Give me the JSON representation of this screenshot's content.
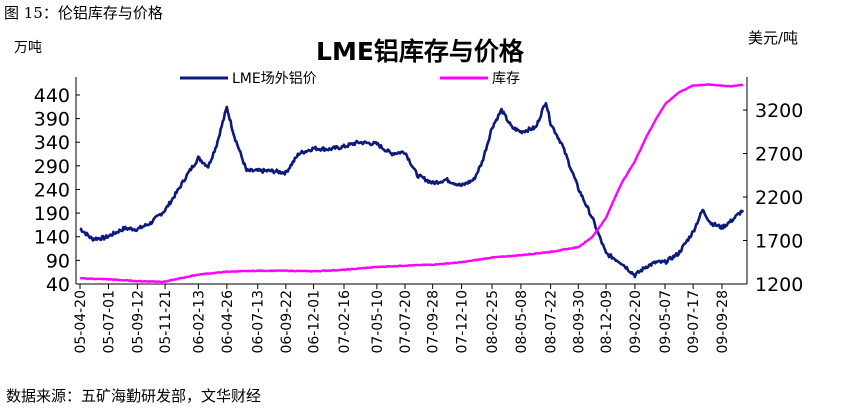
{
  "figure": {
    "caption": "图 15：伦铝库存与价格",
    "source": "数据来源：五矿海勤研发部，文华财经"
  },
  "chart_data": {
    "type": "line",
    "title": "LME铝库存与价格",
    "left_unit": "万吨",
    "right_unit": "美元/吨",
    "legend_position": "top",
    "grid": false,
    "x_tick_labels": [
      "05-04-20",
      "05-07-01",
      "05-09-12",
      "05-11-21",
      "06-02-13",
      "06-04-26",
      "06-07-13",
      "06-09-22",
      "06-12-01",
      "07-02-16",
      "07-05-10",
      "07-07-20",
      "07-09-28",
      "07-12-10",
      "08-02-25",
      "08-05-08",
      "08-07-22",
      "08-09-30",
      "08-12-09",
      "09-02-20",
      "09-05-07",
      "09-07-17",
      "09-09-28"
    ],
    "y_left": {
      "label": "万吨",
      "ticks": [
        40,
        90,
        140,
        190,
        240,
        290,
        340,
        390,
        440
      ],
      "range": [
        40,
        478
      ]
    },
    "y_right": {
      "label": "美元/吨",
      "ticks": [
        1200,
        1700,
        2200,
        2700,
        3200
      ],
      "range": [
        1200,
        3580
      ]
    },
    "series": [
      {
        "name": "LME场外铝价",
        "axis": "right",
        "color": "#0b1a7c",
        "points": [
          [
            "05-04-20",
            1840
          ],
          [
            "05-05-20",
            1720
          ],
          [
            "05-06-20",
            1730
          ],
          [
            "05-07-01",
            1750
          ],
          [
            "05-08-10",
            1840
          ],
          [
            "05-09-12",
            1830
          ],
          [
            "05-10-15",
            1900
          ],
          [
            "05-11-21",
            2050
          ],
          [
            "05-12-20",
            2250
          ],
          [
            "06-01-15",
            2450
          ],
          [
            "06-02-13",
            2650
          ],
          [
            "06-03-10",
            2550
          ],
          [
            "06-03-31",
            2800
          ],
          [
            "06-04-26",
            3230
          ],
          [
            "06-05-15",
            2900
          ],
          [
            "06-06-15",
            2500
          ],
          [
            "06-07-13",
            2500
          ],
          [
            "06-08-15",
            2500
          ],
          [
            "06-09-22",
            2480
          ],
          [
            "06-10-25",
            2700
          ],
          [
            "06-12-01",
            2760
          ],
          [
            "07-01-10",
            2750
          ],
          [
            "07-02-16",
            2780
          ],
          [
            "07-03-25",
            2830
          ],
          [
            "07-05-10",
            2810
          ],
          [
            "07-06-15",
            2700
          ],
          [
            "07-07-20",
            2720
          ],
          [
            "07-08-20",
            2450
          ],
          [
            "07-09-28",
            2360
          ],
          [
            "07-11-01",
            2400
          ],
          [
            "07-12-10",
            2330
          ],
          [
            "08-01-10",
            2400
          ],
          [
            "08-01-31",
            2600
          ],
          [
            "08-02-25",
            3000
          ],
          [
            "08-03-20",
            3200
          ],
          [
            "08-04-15",
            3000
          ],
          [
            "08-05-08",
            2950
          ],
          [
            "08-06-15",
            3000
          ],
          [
            "08-07-10",
            3300
          ],
          [
            "08-07-22",
            3050
          ],
          [
            "08-08-20",
            2800
          ],
          [
            "08-09-30",
            2300
          ],
          [
            "08-11-05",
            1950
          ],
          [
            "08-12-09",
            1550
          ],
          [
            "09-01-15",
            1450
          ],
          [
            "09-02-20",
            1300
          ],
          [
            "09-03-20",
            1400
          ],
          [
            "09-04-15",
            1450
          ],
          [
            "09-05-07",
            1450
          ],
          [
            "09-06-10",
            1550
          ],
          [
            "09-07-17",
            1800
          ],
          [
            "09-08-10",
            2050
          ],
          [
            "09-08-31",
            1900
          ],
          [
            "09-09-28",
            1850
          ],
          [
            "09-10-20",
            1920
          ],
          [
            "09-11-20",
            2050
          ]
        ]
      },
      {
        "name": "库存",
        "axis": "left",
        "color": "#ff00ff",
        "points": [
          [
            "05-04-20",
            52
          ],
          [
            "05-07-01",
            50
          ],
          [
            "05-09-12",
            46
          ],
          [
            "05-11-21",
            45
          ],
          [
            "06-01-15",
            55
          ],
          [
            "06-02-13",
            60
          ],
          [
            "06-04-26",
            66
          ],
          [
            "06-07-13",
            68
          ],
          [
            "06-09-22",
            68
          ],
          [
            "06-12-01",
            67
          ],
          [
            "07-02-16",
            70
          ],
          [
            "07-05-10",
            76
          ],
          [
            "07-07-20",
            79
          ],
          [
            "07-09-28",
            81
          ],
          [
            "07-12-10",
            86
          ],
          [
            "08-02-25",
            96
          ],
          [
            "08-05-08",
            101
          ],
          [
            "08-07-22",
            108
          ],
          [
            "08-09-30",
            118
          ],
          [
            "08-11-05",
            140
          ],
          [
            "08-12-09",
            180
          ],
          [
            "09-01-15",
            250
          ],
          [
            "09-02-20",
            300
          ],
          [
            "09-03-20",
            350
          ],
          [
            "09-04-15",
            390
          ],
          [
            "09-05-07",
            420
          ],
          [
            "09-06-10",
            445
          ],
          [
            "09-07-17",
            460
          ],
          [
            "09-08-20",
            462
          ],
          [
            "09-09-28",
            460
          ],
          [
            "09-10-20",
            458
          ],
          [
            "09-11-20",
            462
          ]
        ]
      }
    ]
  }
}
